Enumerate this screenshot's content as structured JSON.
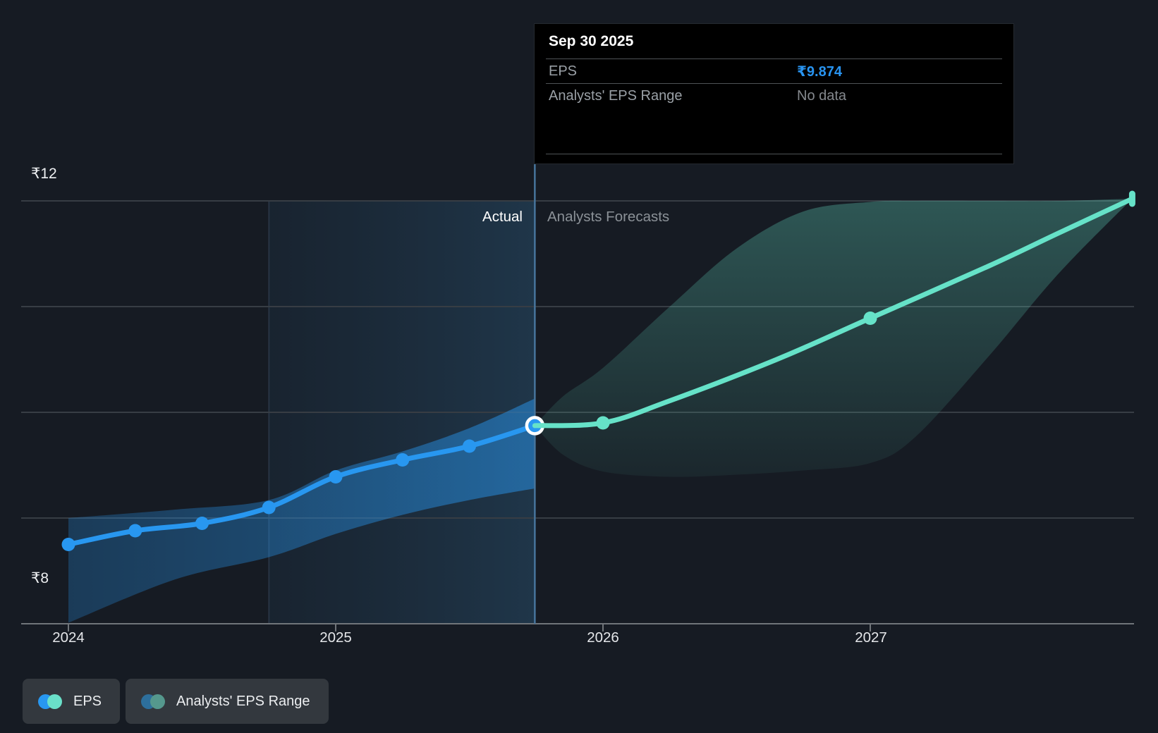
{
  "tooltip": {
    "title": "Sep 30 2025",
    "rows": [
      {
        "label": "EPS",
        "value": "₹9.874",
        "style": "accent-blue"
      },
      {
        "label": "Analysts' EPS Range",
        "value": "No data",
        "style": "muted"
      }
    ]
  },
  "labels": {
    "actual": "Actual",
    "forecast": "Analysts Forecasts"
  },
  "axis": {
    "y_labels": [
      {
        "text": "₹12",
        "value": 12
      },
      {
        "text": "₹8",
        "value": 8
      }
    ],
    "x_labels": [
      "2024",
      "2025",
      "2026",
      "2027"
    ]
  },
  "legend": [
    {
      "label": "EPS",
      "colors": [
        "#2897f0",
        "#6ae0c9"
      ]
    },
    {
      "label": "Analysts' EPS Range",
      "colors": [
        "#2d6f9c",
        "#55988d"
      ]
    }
  ],
  "colors": {
    "background": "#161b23",
    "eps_line": "#2897f0",
    "forecast_line": "#66e2c8",
    "eps_value_text": "#2994f0",
    "divider": "#47759c",
    "muted_text": "#9aa0a6"
  },
  "chart_data": {
    "type": "line",
    "title": "EPS actual vs analysts forecasts",
    "currency": "₹",
    "x_unit": "decimal_year",
    "xlim": [
      2024.0,
      2027.98
    ],
    "x_ticks": [
      2024,
      2025,
      2026,
      2027
    ],
    "y_gridline_values": [
      12,
      11,
      10,
      9
    ],
    "y_axis_value": 8,
    "ylim": [
      7.67,
      12.33
    ],
    "divider_t": 2025.745,
    "divider_date": "Sep 30 2025",
    "divider_eps": 9.874,
    "highlight_span": [
      2024.75,
      2025.745
    ],
    "legend_position": "bottom-left",
    "grid": true,
    "series": [
      {
        "name": "EPS",
        "role": "actual",
        "color": "#2897f0",
        "points": [
          [
            2024.0,
            8.75
          ],
          [
            2024.25,
            8.88
          ],
          [
            2024.5,
            8.95
          ],
          [
            2024.75,
            9.1
          ],
          [
            2025.0,
            9.39
          ],
          [
            2025.25,
            9.55
          ],
          [
            2025.5,
            9.68
          ],
          [
            2025.745,
            9.874
          ]
        ],
        "dots": "all",
        "last_point_ring": true,
        "band_style": "blue",
        "band": [
          [
            2024.0,
            8.01,
            9.0
          ],
          [
            2024.4,
            8.42,
            9.08
          ],
          [
            2024.75,
            8.63,
            9.17
          ],
          [
            2025.0,
            8.85,
            9.45
          ],
          [
            2025.25,
            9.03,
            9.63
          ],
          [
            2025.5,
            9.17,
            9.85
          ],
          [
            2025.745,
            9.28,
            10.13
          ]
        ]
      },
      {
        "name": "Analysts' EPS Range",
        "role": "forecast",
        "color": "#66e2c8",
        "points": [
          [
            2025.745,
            9.874
          ],
          [
            2026.0,
            9.9
          ],
          [
            2026.24,
            10.1
          ],
          [
            2026.65,
            10.5
          ],
          [
            2027.0,
            10.89
          ],
          [
            2027.44,
            11.38
          ],
          [
            2027.7,
            11.69
          ],
          [
            2027.98,
            12.02
          ]
        ],
        "dots": [
          2026.0,
          2027.0
        ],
        "end_cap": true,
        "band_style": "teal",
        "band": [
          [
            2025.745,
            9.874,
            9.874
          ],
          [
            2025.85,
            9.6,
            10.15
          ],
          [
            2026.0,
            9.44,
            10.42
          ],
          [
            2026.25,
            9.39,
            11.0
          ],
          [
            2026.5,
            9.41,
            11.55
          ],
          [
            2026.75,
            9.45,
            11.9
          ],
          [
            2027.0,
            9.52,
            11.99
          ],
          [
            2027.17,
            9.77,
            12.0
          ],
          [
            2027.45,
            10.55,
            12.0
          ],
          [
            2027.7,
            11.3,
            12.0
          ],
          [
            2027.98,
            12.02,
            12.02
          ]
        ]
      }
    ]
  }
}
